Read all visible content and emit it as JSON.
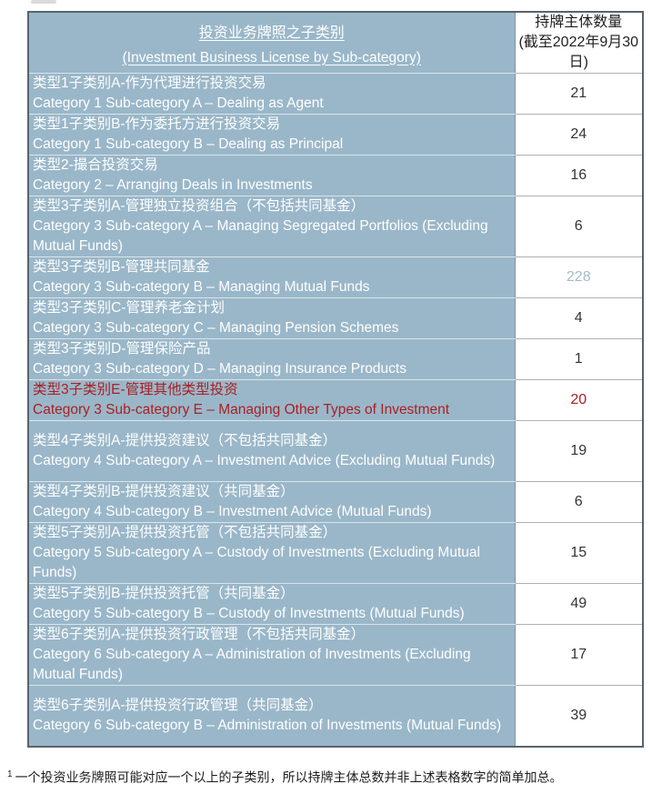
{
  "colors": {
    "cell_blue": "#9ab7c9",
    "text_on_blue": "#ffffff",
    "number_dark": "#333333",
    "number_muted": "#a4bbc8",
    "highlight_red": "#aa2024",
    "border_dark": "#57636d",
    "divider": "#7e929e",
    "sep_blue": "#d9e5ea",
    "sep_num": "#b0b0b0"
  },
  "table": {
    "header": {
      "category_zh": "投资业务牌照之子类别",
      "category_en": "(Investment Business License by Sub-category)",
      "count_line1": "持牌主体数量",
      "count_line2": "(截至2022年9月30日)"
    },
    "rows": [
      {
        "zh": "类型1子类别A-作为代理进行投资交易",
        "en": "Category 1 Sub-category A – Dealing as Agent",
        "count": "21"
      },
      {
        "zh": "类型1子类别B-作为委托方进行投资交易",
        "en": "Category 1 Sub-category B – Dealing as Principal",
        "count": "24"
      },
      {
        "zh": "类型2-撮合投资交易",
        "en": "Category 2 – Arranging Deals in Investments",
        "count": "16"
      },
      {
        "zh": "类型3子类别A-管理独立投资组合（不包括共同基金）",
        "en": "Category 3 Sub-category A – Managing Segregated Portfolios (Excluding Mutual Funds)",
        "count": "6"
      },
      {
        "zh": "类型3子类别B-管理共同基金",
        "en": "Category 3 Sub-category B – Managing Mutual Funds",
        "count": "228",
        "count_style": "muted"
      },
      {
        "zh": "类型3子类别C-管理养老金计划",
        "en": "Category 3 Sub-category C – Managing Pension Schemes",
        "count": "4"
      },
      {
        "zh": "类型3子类别D-管理保险产品",
        "en": "Category 3 Sub-category D – Managing Insurance Products",
        "count": "1"
      },
      {
        "zh": "类型3子类别E-管理其他类型投资",
        "en": "Category 3 Sub-category E – Managing Other Types of Investment",
        "count": "20",
        "row_style": "red"
      },
      {
        "zh": "类型4子类别A-提供投资建议（不包括共同基金）",
        "en": "Category 4 Sub-category A – Investment Advice (Excluding Mutual Funds)",
        "count": "19"
      },
      {
        "zh": "类型4子类别B-提供投资建议（共同基金）",
        "en": "Category 4 Sub-category B – Investment Advice (Mutual Funds)",
        "count": "6"
      },
      {
        "zh": "类型5子类别A-提供投资托管（不包括共同基金）",
        "en": "Category 5 Sub-category A – Custody of Investments (Excluding Mutual Funds)",
        "count": "15"
      },
      {
        "zh": "类型5子类别B-提供投资托管（共同基金）",
        "en": "Category 5 Sub-category B – Custody of Investments (Mutual Funds)",
        "count": "49"
      },
      {
        "zh": "类型6子类别A-提供投资行政管理（不包括共同基金）",
        "en": "Category 6 Sub-category A – Administration of Investments (Excluding Mutual Funds)",
        "count": "17"
      },
      {
        "zh": "类型6子类别A-提供投资行政管理（共同基金）",
        "en": "Category 6 Sub-category B – Administration of Investments (Mutual Funds)",
        "count": "39"
      }
    ]
  },
  "footnote": {
    "marker": "1",
    "text": "一个投资业务牌照可能对应一个以上的子类别，所以持牌主体总数并非上述表格数字的简单加总。"
  }
}
